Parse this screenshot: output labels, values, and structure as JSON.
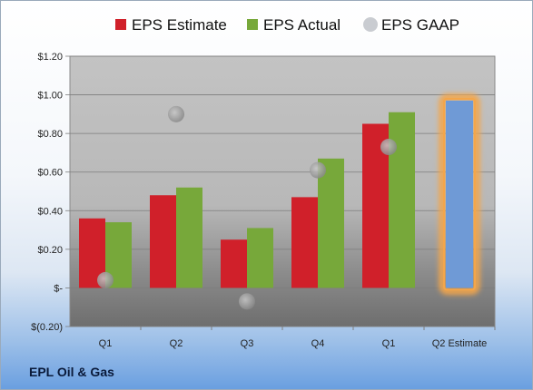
{
  "company": "EPL Oil & Gas",
  "colors": {
    "estimate": "#d0202a",
    "actual": "#77a83a",
    "gaap": "#a9a9a9",
    "projection": "#6f9ad6",
    "highlight": "#f4a64a"
  },
  "chart_data": {
    "type": "bar",
    "categories": [
      "Q1",
      "Q2",
      "Q3",
      "Q4",
      "Q1",
      "Q2 Estimate"
    ],
    "series": [
      {
        "name": "EPS Estimate",
        "values": [
          0.36,
          0.48,
          0.25,
          0.47,
          0.85,
          null
        ]
      },
      {
        "name": "EPS Actual",
        "values": [
          0.34,
          0.52,
          0.31,
          0.67,
          0.91,
          null
        ]
      },
      {
        "name": "EPS GAAP",
        "values": [
          0.04,
          0.9,
          -0.07,
          0.61,
          0.73,
          null
        ]
      }
    ],
    "projection": {
      "category": "Q2 Estimate",
      "value": 0.97
    },
    "ylim": [
      -0.2,
      1.2
    ],
    "yticks": [
      -0.2,
      0,
      0.2,
      0.4,
      0.6,
      0.8,
      1.0,
      1.2
    ],
    "ytick_labels": [
      "$(0.20)",
      "$-",
      "$0.20",
      "$0.40",
      "$0.60",
      "$0.80",
      "$1.00",
      "$1.20"
    ],
    "grid": true,
    "legend": "top"
  }
}
